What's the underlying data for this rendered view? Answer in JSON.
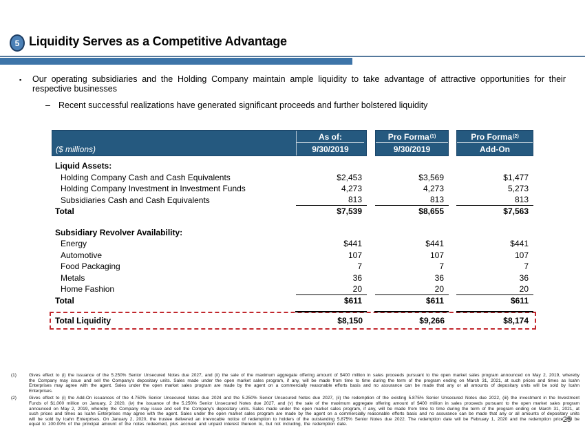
{
  "slide": {
    "title": "Liquidity Serves as a Competitive Advantage",
    "title_badge": "5",
    "page_number": "25"
  },
  "bullets": {
    "marker_icon": "▪",
    "dash_icon": "–",
    "main": "Our operating subsidiaries and the Holding Company maintain ample liquidity to take advantage of attractive opportunities for their respective businesses",
    "sub": "Recent successful realizations have generated significant proceeds and further bolstered liquidity"
  },
  "table": {
    "unit_label": "($ millions)",
    "col_headers": [
      {
        "top": "As of:",
        "sup": "",
        "bottom": "9/30/2019"
      },
      {
        "top": "Pro Forma",
        "sup": "(1)",
        "bottom": "9/30/2019"
      },
      {
        "top": "Pro Forma",
        "sup": "(2)",
        "bottom": "Add-On"
      }
    ],
    "sections": [
      {
        "header": "Liquid Assets:",
        "rows": [
          {
            "label": "Holding Company Cash and Cash Equivalents",
            "values": [
              "$2,453",
              "$3,569",
              "$1,477"
            ]
          },
          {
            "label": "Holding Company Investment in Investment Funds",
            "values": [
              "4,273",
              "4,273",
              "5,273"
            ]
          },
          {
            "label": "Subsidiaries Cash and Cash Equivalents",
            "values": [
              "813",
              "813",
              "813"
            ]
          }
        ],
        "total": {
          "label": "Total",
          "values": [
            "$7,539",
            "$8,655",
            "$7,563"
          ]
        }
      },
      {
        "header": "Subsidiary Revolver Availability:",
        "rows": [
          {
            "label": "Energy",
            "values": [
              "$441",
              "$441",
              "$441"
            ]
          },
          {
            "label": "Automotive",
            "values": [
              "107",
              "107",
              "107"
            ]
          },
          {
            "label": "Food Packaging",
            "values": [
              "7",
              "7",
              "7"
            ]
          },
          {
            "label": "Metals",
            "values": [
              "36",
              "36",
              "36"
            ]
          },
          {
            "label": "Home Fashion",
            "values": [
              "20",
              "20",
              "20"
            ]
          }
        ],
        "total": {
          "label": "Total",
          "values": [
            "$611",
            "$611",
            "$611"
          ]
        }
      }
    ],
    "grand_total": {
      "label": "Total Liquidity",
      "values": [
        "$8,150",
        "$9,266",
        "$8,174"
      ]
    }
  },
  "footnotes": [
    {
      "num": "(1)",
      "text": "Gives effect to (i) the issuance of the 5.250% Senior Unsecured Notes due 2027, and (ii) the sale of the maximum aggregate offering amount of $400 million in sales proceeds pursuant to the open market sales program announced on May 2, 2019, whereby the Company may issue and sell the Company's depositary units. Sales made under the open market sales program, if any, will be made from time to time during the term of the program ending on March 31, 2021, at such prices and times as Icahn Enterprises may agree with the agent. Sales under the open market sales program are made by the agent on a commercially reasonable efforts basis and no assurance can be made that any or all amounts of depositary units will be sold by Icahn Enterprises."
    },
    {
      "num": "(2)",
      "text": "Gives effect to (i) the Add-On issuances of the 4.750% Senior Unsecured Notes due 2024 and the 5.250% Senior Unsecured Notes due 2027, (ii) the redemption of the existing 5.875% Senior Unsecured Notes due 2022, (iii) the investment in the Investment Funds of $1,000 million on January, 2 2020, (iv) the issuance of the 5.250% Senior Unsecured Notes due 2027, and (v) the sale of the maximum aggregate offering amount of $400 million in sales proceeds pursuant to the open market sales program announced on May 2, 2019, whereby the Company may issue and sell the Company's depositary units. Sales made under the open market sales program, if any, will be made from time to time during the term of the program ending on March 31, 2021, at such prices and times as Icahn Enterprises may agree with the agent. Sales under the open market sales program are made by the agent on a commercially reasonable efforts basis and no assurance can be made that any or all amounts of depositary units will be sold by Icahn Enterprises. On January 2, 2020, the trustee delivered an irrevocable notice of redemption to holders of the outstanding 5.875% Senior Notes due 2022. The redemption date will be February 1, 2020 and the redemption price will be equal to 100.00% of the principal amount of the notes redeemed, plus accrued and unpaid interest thereon to, but not including, the redemption date."
    }
  ],
  "colors": {
    "header_blue": "#25597F",
    "accent_bar_blue": "#3D74A8",
    "thin_rule_blue": "#54789C",
    "badge_fill_blue": "#4B80B6",
    "badge_border_navy": "#1D3D63",
    "highlight_dashed_red": "#C1272D"
  }
}
